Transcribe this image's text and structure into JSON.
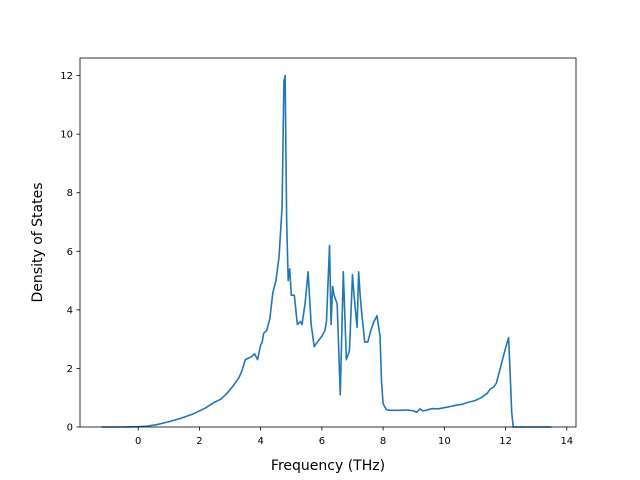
{
  "chart_data": {
    "type": "line",
    "title": "",
    "xlabel": "Frequency (THz)",
    "ylabel": "Density of States",
    "xlim": [
      -1.9,
      14.3
    ],
    "ylim": [
      0,
      12.6
    ],
    "x_ticks": [
      0,
      2,
      4,
      6,
      8,
      10,
      12,
      14
    ],
    "x_tick_labels": [
      "0",
      "2",
      "4",
      "6",
      "8",
      "10",
      "12",
      "14"
    ],
    "y_ticks": [
      0,
      2,
      4,
      6,
      8,
      10,
      12
    ],
    "y_tick_labels": [
      "0",
      "2",
      "4",
      "6",
      "8",
      "10",
      "12"
    ],
    "grid": false,
    "line_color": "#1f77b4",
    "series": [
      {
        "x": [
          -1.2,
          -0.5,
          0,
          0.3,
          0.6,
          1.0,
          1.4,
          1.8,
          2.2,
          2.5,
          2.7,
          2.9,
          3.1,
          3.3,
          3.4,
          3.5,
          3.7,
          3.8,
          3.9,
          4.0,
          4.05,
          4.1,
          4.2,
          4.3,
          4.4,
          4.5,
          4.6,
          4.7,
          4.76,
          4.8,
          4.85,
          4.9,
          4.95,
          5.0,
          5.1,
          5.2,
          5.3,
          5.35,
          5.45,
          5.55,
          5.65,
          5.75,
          5.85,
          6.0,
          6.1,
          6.15,
          6.25,
          6.3,
          6.35,
          6.4,
          6.5,
          6.6,
          6.7,
          6.8,
          6.9,
          7.0,
          7.05,
          7.15,
          7.2,
          7.25,
          7.3,
          7.4,
          7.5,
          7.6,
          7.7,
          7.8,
          7.9,
          7.95,
          8.0,
          8.1,
          8.2,
          8.5,
          8.8,
          9.0,
          9.1,
          9.2,
          9.3,
          9.4,
          9.6,
          9.8,
          10.0,
          10.2,
          10.4,
          10.6,
          10.8,
          11.0,
          11.2,
          11.4,
          11.5,
          11.6,
          11.7,
          11.8,
          11.9,
          12.0,
          12.1,
          12.15,
          12.2,
          12.25,
          12.4,
          13.0,
          13.5
        ],
        "y": [
          0,
          0,
          0.01,
          0.03,
          0.08,
          0.18,
          0.3,
          0.45,
          0.65,
          0.85,
          0.95,
          1.15,
          1.4,
          1.7,
          1.95,
          2.3,
          2.4,
          2.5,
          2.3,
          2.8,
          2.9,
          3.2,
          3.3,
          3.7,
          4.6,
          5.0,
          5.8,
          7.5,
          11.8,
          12.0,
          7.0,
          5.0,
          5.4,
          4.5,
          4.5,
          3.5,
          3.6,
          3.5,
          4.2,
          5.3,
          3.5,
          2.75,
          2.9,
          3.1,
          3.3,
          3.6,
          6.2,
          3.5,
          4.8,
          4.5,
          4.2,
          1.1,
          5.3,
          2.3,
          2.6,
          5.2,
          4.5,
          3.4,
          5.3,
          4.5,
          3.9,
          2.9,
          2.9,
          3.3,
          3.6,
          3.8,
          3.1,
          1.5,
          0.8,
          0.6,
          0.57,
          0.57,
          0.58,
          0.55,
          0.5,
          0.62,
          0.55,
          0.57,
          0.63,
          0.62,
          0.66,
          0.7,
          0.75,
          0.78,
          0.85,
          0.9,
          1.0,
          1.15,
          1.3,
          1.35,
          1.5,
          1.9,
          2.3,
          2.7,
          3.05,
          1.8,
          0.5,
          0,
          0,
          0,
          0
        ]
      }
    ]
  }
}
